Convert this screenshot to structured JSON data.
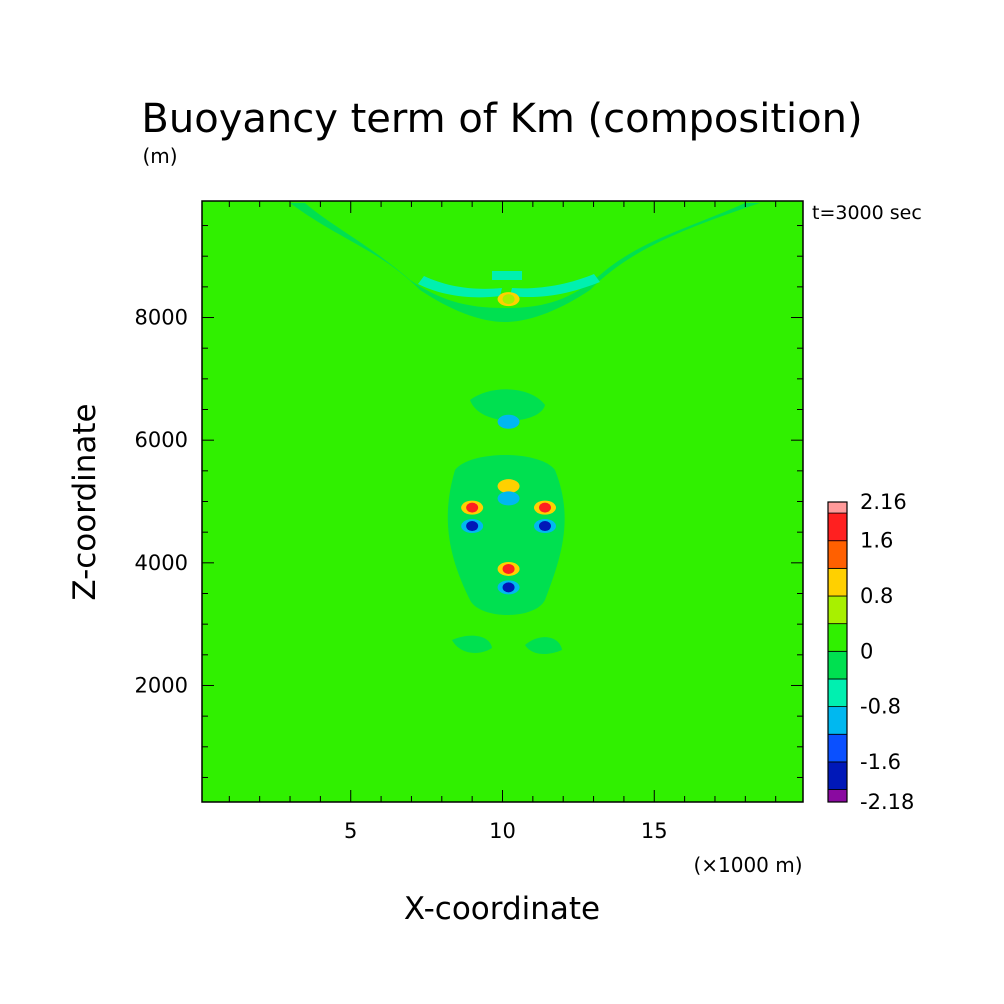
{
  "chart_data": {
    "type": "heatmap",
    "title": "Buoyancy term of Km (composition)",
    "xlabel": "X-coordinate",
    "ylabel": "Z-coordinate",
    "x_unit": "(×1000 m)",
    "y_unit": "(m)",
    "time_label": "t=3000 sec",
    "xlim": [
      0.1,
      19.9
    ],
    "ylim": [
      100,
      9900
    ],
    "x_ticks": [
      5,
      10,
      15
    ],
    "y_ticks": [
      2000,
      4000,
      6000,
      8000
    ],
    "colorbar": {
      "levels": [
        -2.18,
        -2.0,
        -1.6,
        -1.2,
        -0.8,
        -0.4,
        0,
        0.4,
        0.8,
        1.2,
        1.6,
        2.0,
        2.16
      ],
      "colors": [
        "#8a0aa0",
        "#0018b8",
        "#0a50ff",
        "#00b8f0",
        "#00f0b0",
        "#00e050",
        "#30f000",
        "#a8f000",
        "#ffd000",
        "#ff6000",
        "#ff2020",
        "#ff9a9a"
      ],
      "tick_labels": [
        {
          "value": 2.16,
          "label": "2.16"
        },
        {
          "value": 1.6,
          "label": "1.6"
        },
        {
          "value": 0.8,
          "label": "0.8"
        },
        {
          "value": 0,
          "label": "0"
        },
        {
          "value": -0.8,
          "label": "-0.8"
        },
        {
          "value": -1.6,
          "label": "-1.6"
        },
        {
          "value": -2.18,
          "label": "-2.18"
        }
      ]
    },
    "background_value": 0.1,
    "features": [
      {
        "x": 10.2,
        "z": 3900,
        "value": 1.9
      },
      {
        "x": 10.2,
        "z": 3600,
        "value": -1.9
      },
      {
        "x": 9.0,
        "z": 4900,
        "value": 1.7
      },
      {
        "x": 11.4,
        "z": 4900,
        "value": 1.7
      },
      {
        "x": 9.0,
        "z": 4600,
        "value": -1.7
      },
      {
        "x": 11.4,
        "z": 4600,
        "value": -1.7
      },
      {
        "x": 10.2,
        "z": 5250,
        "value": 0.9
      },
      {
        "x": 10.2,
        "z": 5050,
        "value": -1.0
      },
      {
        "x": 10.2,
        "z": 6300,
        "value": -0.9
      },
      {
        "x": 10.2,
        "z": 8300,
        "value": 0.5
      }
    ]
  }
}
